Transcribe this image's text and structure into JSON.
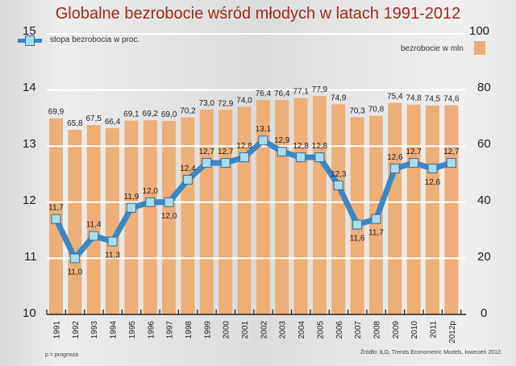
{
  "title": "Globalne bezrobocie wśród młodych w latach 1991-2012",
  "legend": {
    "rate_label": "stopa bezrobocia w proc.",
    "count_label": "bezrobocie w mln"
  },
  "left_axis_ticks": [
    "15",
    "14",
    "13",
    "12",
    "11",
    "10"
  ],
  "right_axis_ticks": [
    "100",
    "80",
    "60",
    "40",
    "20",
    "0"
  ],
  "footnote_left": "p = prognoza",
  "footnote_right": "Źródło: ILO, Trends Econometric Models, kwiecień 2012.",
  "colors": {
    "bar": "#eeae78",
    "line": "#3a87c6",
    "marker": "#a9dcea",
    "title": "#a8281e"
  },
  "chart_data": {
    "type": "bar+line",
    "title": "Globalne bezrobocie wśród młodych w latach 1991-2012",
    "categories": [
      "1991",
      "1992",
      "1993",
      "1994",
      "1995",
      "1996",
      "1997",
      "1998",
      "1999",
      "2000",
      "2001",
      "2002",
      "2003",
      "2004",
      "2005",
      "2006",
      "2007",
      "2008",
      "2009",
      "2010",
      "2011",
      "2012p"
    ],
    "series": [
      {
        "name": "bezrobocie w mln",
        "type": "bar",
        "axis": "right",
        "values": [
          69.9,
          65.8,
          67.5,
          66.4,
          69.1,
          69.2,
          69.0,
          70.2,
          73.0,
          72.9,
          74.0,
          76.4,
          76.4,
          77.1,
          77.9,
          74.9,
          70.3,
          70.8,
          75.4,
          74.8,
          74.5,
          74.6
        ],
        "labels": [
          "69,9",
          "65,8",
          "67,5",
          "66,4",
          "69,1",
          "69,2",
          "69,0",
          "70,2",
          "73,0",
          "72,9",
          "74,0",
          "76,4",
          "76,4",
          "77,1",
          "77,9",
          "74,9",
          "70,3",
          "70,8",
          "75,4",
          "74,8",
          "74,5",
          "74,6"
        ]
      },
      {
        "name": "stopa bezrobocia w proc.",
        "type": "line",
        "axis": "left",
        "values": [
          11.7,
          11.0,
          11.4,
          11.3,
          11.9,
          12.0,
          12.0,
          12.4,
          12.7,
          12.7,
          12.8,
          13.1,
          12.9,
          12.8,
          12.8,
          12.3,
          11.6,
          11.7,
          12.6,
          12.7,
          12.6,
          12.7
        ],
        "labels": [
          "11,7",
          "11,0",
          "11,4",
          "11,3",
          "11,9",
          "12,0",
          "12,0",
          "12,4",
          "12,7",
          "12,7",
          "12,8",
          "13,1",
          "12,9",
          "12,8",
          "12,8",
          "12,3",
          "11,6",
          "11,7",
          "12,6",
          "12,7",
          "12,6",
          "12,7"
        ]
      }
    ],
    "ylim_left": [
      10,
      15
    ],
    "ylim_right": [
      0,
      100
    ],
    "grid": true,
    "legend_position": "top",
    "note": "p = prognoza"
  }
}
